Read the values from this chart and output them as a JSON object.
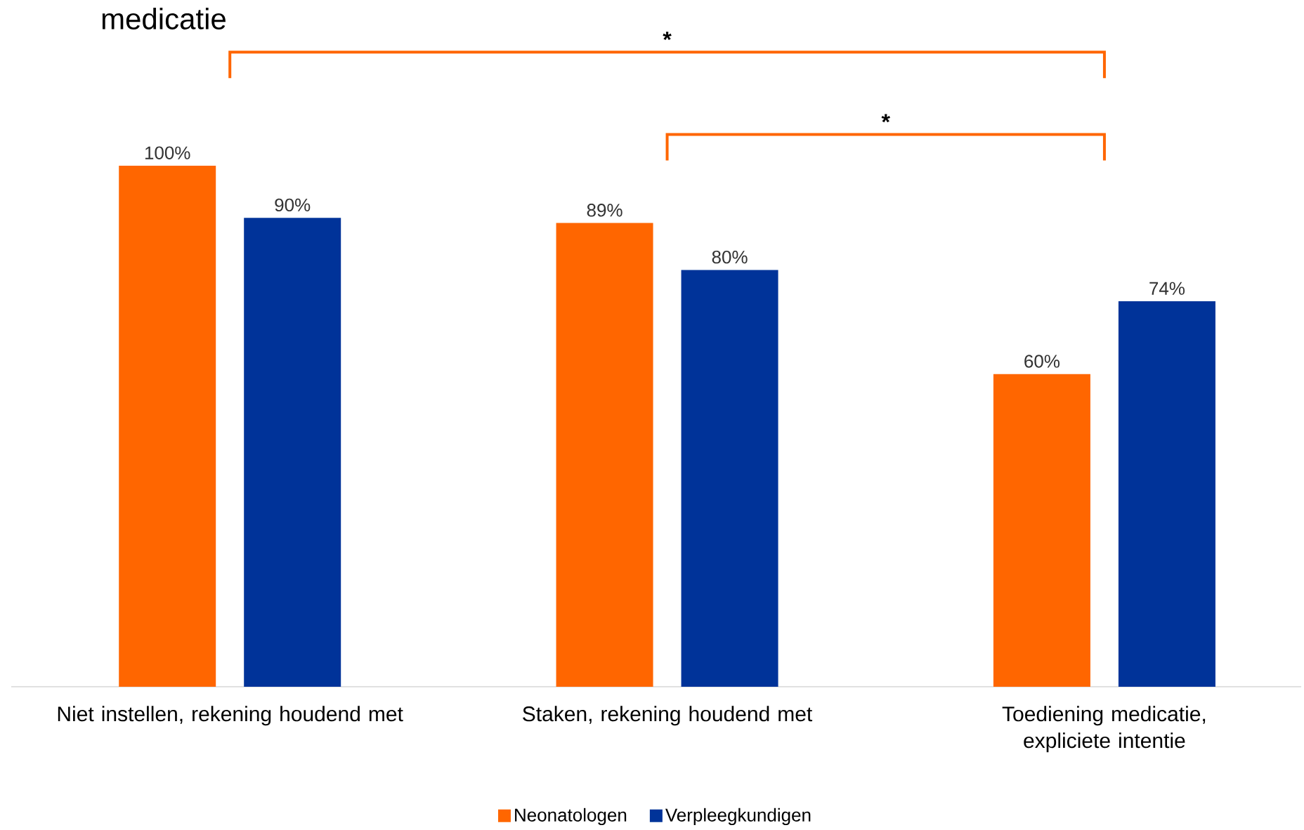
{
  "chart_data": {
    "type": "bar",
    "title": "medicatie",
    "categories": [
      "Niet instellen, rekening houdend met",
      "Staken, rekening houdend met",
      "Toediening medicatie, expliciete intentie"
    ],
    "series": [
      {
        "name": "Neonatologen",
        "color": "#ff6600",
        "values": [
          100,
          89,
          60
        ],
        "value_labels": [
          "100%",
          "89%",
          "60%"
        ]
      },
      {
        "name": "Verpleegkundigen",
        "color": "#003399",
        "values": [
          90,
          80,
          74
        ],
        "value_labels": [
          "90%",
          "80%",
          "74%"
        ]
      }
    ],
    "annotations": [
      "*",
      "*"
    ],
    "legend": "bottom"
  }
}
